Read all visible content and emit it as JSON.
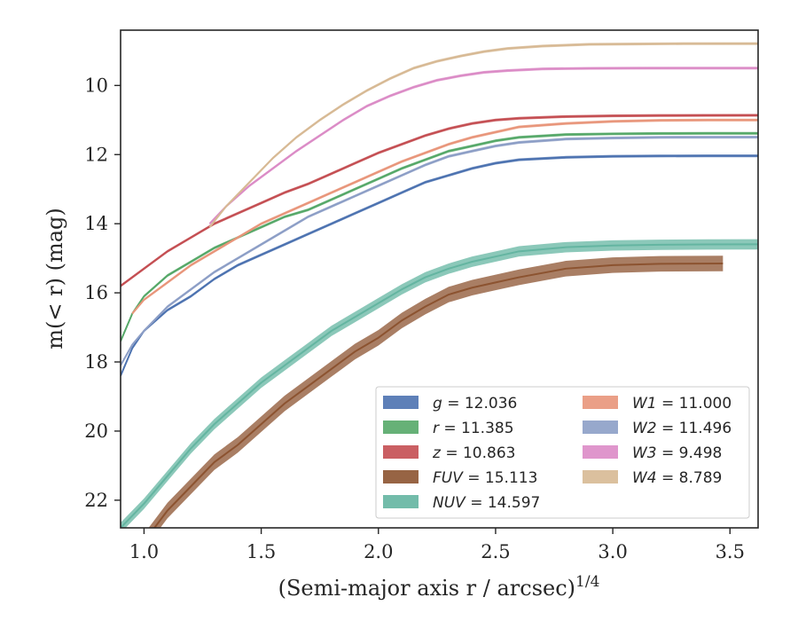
{
  "chart_data": {
    "type": "line",
    "title": "",
    "xlabel": "(Semi-major axis r / arcsec)^1/4",
    "ylabel": "m(< r) (mag)",
    "xlim": [
      0.9,
      3.62
    ],
    "ylim": [
      22.8,
      8.4
    ],
    "y_inverted": true,
    "xticks": [
      "1.0",
      "1.5",
      "2.0",
      "2.5",
      "3.0",
      "3.5"
    ],
    "xtick_values": [
      1.0,
      1.5,
      2.0,
      2.5,
      3.0,
      3.5
    ],
    "yticks": [
      "10",
      "12",
      "14",
      "16",
      "18",
      "20",
      "22"
    ],
    "ytick_values": [
      10,
      12,
      14,
      16,
      18,
      20,
      22
    ],
    "grid": false,
    "legend_position": "lower-right",
    "legend_columns": 2,
    "series": [
      {
        "name": "g",
        "legend": "g = 12.036",
        "color": "#4c72b0",
        "band": 0.08,
        "x": [
          0.9,
          0.95,
          1.0,
          1.1,
          1.2,
          1.3,
          1.4,
          1.5,
          1.6,
          1.7,
          1.8,
          1.9,
          2.0,
          2.1,
          2.2,
          2.3,
          2.4,
          2.5,
          2.6,
          2.8,
          3.0,
          3.2,
          3.4,
          3.62
        ],
        "y": [
          18.4,
          17.6,
          17.1,
          16.5,
          16.1,
          15.6,
          15.2,
          14.9,
          14.6,
          14.3,
          14.0,
          13.7,
          13.4,
          13.1,
          12.8,
          12.6,
          12.4,
          12.25,
          12.15,
          12.08,
          12.05,
          12.04,
          12.036,
          12.036
        ]
      },
      {
        "name": "r",
        "legend": "r = 11.385",
        "color": "#55a868",
        "band": 0.08,
        "x": [
          0.9,
          0.95,
          1.0,
          1.1,
          1.2,
          1.3,
          1.4,
          1.5,
          1.6,
          1.7,
          1.8,
          1.9,
          2.0,
          2.1,
          2.2,
          2.3,
          2.4,
          2.5,
          2.6,
          2.8,
          3.0,
          3.2,
          3.4,
          3.62
        ],
        "y": [
          17.4,
          16.6,
          16.1,
          15.5,
          15.1,
          14.7,
          14.4,
          14.1,
          13.8,
          13.6,
          13.3,
          13.0,
          12.7,
          12.4,
          12.15,
          11.9,
          11.75,
          11.6,
          11.5,
          11.42,
          11.4,
          11.39,
          11.385,
          11.385
        ]
      },
      {
        "name": "z",
        "legend": "z = 10.863",
        "color": "#c44e52",
        "band": 0.08,
        "x": [
          0.9,
          1.0,
          1.1,
          1.2,
          1.3,
          1.4,
          1.5,
          1.6,
          1.7,
          1.8,
          1.9,
          2.0,
          2.1,
          2.2,
          2.3,
          2.4,
          2.5,
          2.6,
          2.8,
          3.0,
          3.2,
          3.4,
          3.62
        ],
        "y": [
          15.8,
          15.3,
          14.8,
          14.4,
          14.0,
          13.7,
          13.4,
          13.1,
          12.85,
          12.55,
          12.25,
          11.95,
          11.7,
          11.45,
          11.25,
          11.1,
          11.0,
          10.95,
          10.9,
          10.88,
          10.87,
          10.865,
          10.863
        ]
      },
      {
        "name": "FUV",
        "legend": "FUV = 15.113",
        "color": "#8c5330",
        "band": 0.45,
        "x": [
          0.9,
          1.0,
          1.1,
          1.2,
          1.3,
          1.4,
          1.5,
          1.6,
          1.7,
          1.8,
          1.9,
          2.0,
          2.1,
          2.2,
          2.3,
          2.4,
          2.5,
          2.6,
          2.8,
          3.0,
          3.2,
          3.47
        ],
        "y": [
          24.0,
          23.2,
          22.3,
          21.6,
          20.9,
          20.4,
          19.8,
          19.2,
          18.7,
          18.2,
          17.7,
          17.3,
          16.8,
          16.4,
          16.05,
          15.85,
          15.7,
          15.55,
          15.3,
          15.2,
          15.16,
          15.15
        ]
      },
      {
        "name": "NUV",
        "legend": "NUV = 14.597",
        "color": "#64b5a1",
        "band": 0.3,
        "x": [
          0.9,
          1.0,
          1.1,
          1.2,
          1.3,
          1.4,
          1.5,
          1.6,
          1.7,
          1.8,
          1.9,
          2.0,
          2.1,
          2.2,
          2.3,
          2.4,
          2.5,
          2.6,
          2.8,
          3.0,
          3.2,
          3.4,
          3.62
        ],
        "y": [
          22.8,
          22.1,
          21.3,
          20.5,
          19.8,
          19.2,
          18.6,
          18.1,
          17.6,
          17.1,
          16.7,
          16.3,
          15.9,
          15.55,
          15.3,
          15.1,
          14.95,
          14.8,
          14.68,
          14.63,
          14.61,
          14.6,
          14.597
        ]
      },
      {
        "name": "W1",
        "legend": "W1 = 11.000",
        "color": "#e8957a",
        "band": 0.08,
        "x": [
          0.95,
          1.0,
          1.1,
          1.2,
          1.3,
          1.4,
          1.5,
          1.6,
          1.7,
          1.8,
          1.9,
          2.0,
          2.1,
          2.2,
          2.3,
          2.4,
          2.5,
          2.6,
          2.8,
          3.0,
          3.2,
          3.4,
          3.62
        ],
        "y": [
          16.6,
          16.2,
          15.7,
          15.2,
          14.8,
          14.4,
          14.0,
          13.7,
          13.4,
          13.1,
          12.8,
          12.5,
          12.2,
          11.95,
          11.7,
          11.5,
          11.35,
          11.2,
          11.1,
          11.04,
          11.01,
          11.0,
          11.0
        ]
      },
      {
        "name": "W2",
        "legend": "W2 = 11.496",
        "color": "#8c9ec6",
        "band": 0.08,
        "x": [
          0.9,
          0.95,
          1.0,
          1.1,
          1.2,
          1.3,
          1.4,
          1.5,
          1.6,
          1.7,
          1.8,
          1.9,
          2.0,
          2.1,
          2.2,
          2.3,
          2.4,
          2.5,
          2.6,
          2.8,
          3.0,
          3.2,
          3.4,
          3.62
        ],
        "y": [
          18.1,
          17.5,
          17.1,
          16.4,
          15.9,
          15.4,
          15.0,
          14.6,
          14.2,
          13.8,
          13.5,
          13.2,
          12.9,
          12.6,
          12.3,
          12.05,
          11.9,
          11.75,
          11.65,
          11.55,
          11.52,
          11.5,
          11.497,
          11.496
        ]
      },
      {
        "name": "W3",
        "legend": "W3 = 9.498",
        "color": "#db8bc6",
        "band": 0.08,
        "x": [
          1.28,
          1.35,
          1.45,
          1.55,
          1.65,
          1.75,
          1.85,
          1.95,
          2.05,
          2.15,
          2.25,
          2.35,
          2.45,
          2.55,
          2.7,
          2.9,
          3.1,
          3.3,
          3.62
        ],
        "y": [
          14.0,
          13.5,
          12.9,
          12.4,
          11.9,
          11.45,
          11.0,
          10.6,
          10.3,
          10.05,
          9.85,
          9.72,
          9.62,
          9.57,
          9.52,
          9.505,
          9.5,
          9.498,
          9.498
        ]
      },
      {
        "name": "W4",
        "legend": "W4 = 8.789",
        "color": "#d7b994",
        "band": 0.08,
        "x": [
          1.28,
          1.35,
          1.45,
          1.55,
          1.65,
          1.75,
          1.85,
          1.95,
          2.05,
          2.15,
          2.25,
          2.35,
          2.45,
          2.55,
          2.7,
          2.9,
          3.1,
          3.3,
          3.62
        ],
        "y": [
          14.1,
          13.5,
          12.8,
          12.1,
          11.5,
          11.0,
          10.55,
          10.15,
          9.8,
          9.5,
          9.3,
          9.15,
          9.02,
          8.93,
          8.86,
          8.81,
          8.8,
          8.79,
          8.789
        ]
      }
    ]
  }
}
